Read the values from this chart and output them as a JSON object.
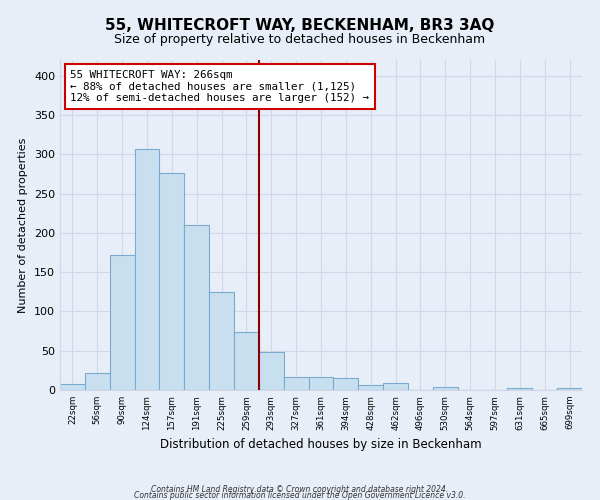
{
  "title": "55, WHITECROFT WAY, BECKENHAM, BR3 3AQ",
  "subtitle": "Size of property relative to detached houses in Beckenham",
  "xlabel": "Distribution of detached houses by size in Beckenham",
  "ylabel": "Number of detached properties",
  "bin_labels": [
    "22sqm",
    "56sqm",
    "90sqm",
    "124sqm",
    "157sqm",
    "191sqm",
    "225sqm",
    "259sqm",
    "293sqm",
    "327sqm",
    "361sqm",
    "394sqm",
    "428sqm",
    "462sqm",
    "496sqm",
    "530sqm",
    "564sqm",
    "597sqm",
    "631sqm",
    "665sqm",
    "699sqm"
  ],
  "bar_values": [
    8,
    22,
    172,
    307,
    276,
    210,
    125,
    74,
    48,
    16,
    16,
    15,
    6,
    9,
    0,
    4,
    0,
    0,
    2,
    0,
    3
  ],
  "bar_color": "#c8dff0",
  "bar_edge_color": "#7aabce",
  "vline_x_index": 7.5,
  "vline_color": "#8b0000",
  "annotation_line1": "55 WHITECROFT WAY: 266sqm",
  "annotation_line2": "← 88% of detached houses are smaller (1,125)",
  "annotation_line3": "12% of semi-detached houses are larger (152) →",
  "annotation_box_color": "white",
  "annotation_box_edge_color": "#cc0000",
  "ylim": [
    0,
    420
  ],
  "yticks": [
    0,
    50,
    100,
    150,
    200,
    250,
    300,
    350,
    400
  ],
  "footer_line1": "Contains HM Land Registry data © Crown copyright and database right 2024.",
  "footer_line2": "Contains public sector information licensed under the Open Government Licence v3.0.",
  "bg_color": "#e8eef8",
  "plot_bg_color": "#e8eef8",
  "grid_color": "#d0d8e8",
  "title_fontsize": 11,
  "subtitle_fontsize": 9
}
